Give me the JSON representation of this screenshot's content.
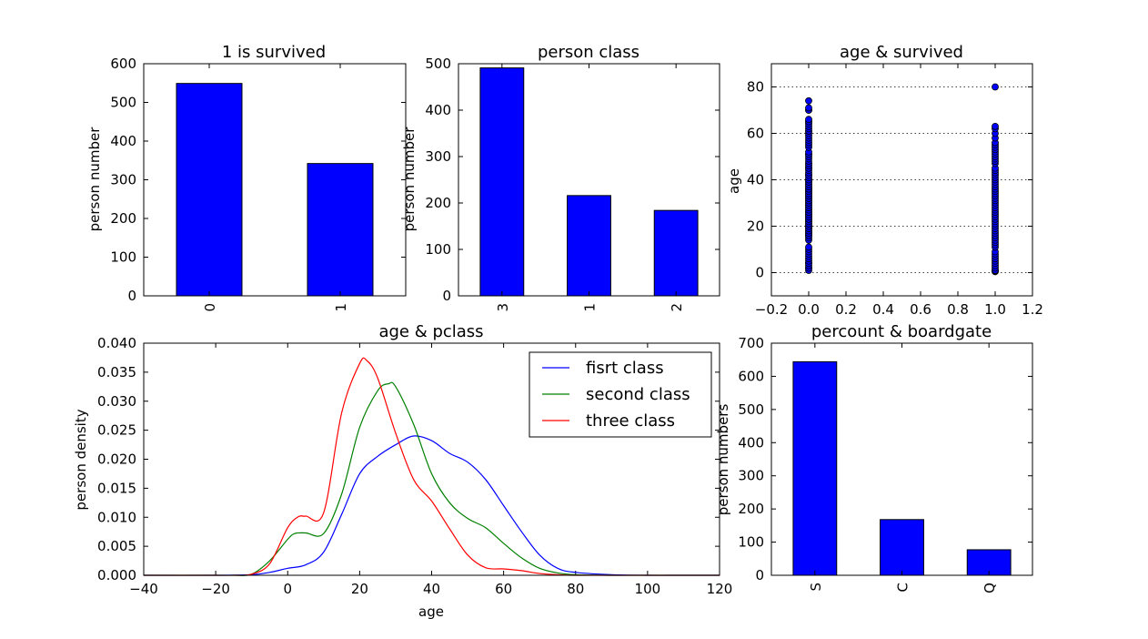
{
  "chart_data": [
    {
      "id": "survived",
      "type": "bar",
      "title": "1 is survived",
      "xlabel": "",
      "ylabel": "person number",
      "categories": [
        "0",
        "1"
      ],
      "values": [
        549,
        342
      ],
      "ylim": [
        0,
        600
      ],
      "yticks": [
        "0",
        "100",
        "200",
        "300",
        "400",
        "500",
        "600"
      ],
      "bar_color": "#0000ff",
      "grid": false
    },
    {
      "id": "pclass",
      "type": "bar",
      "title": "person class",
      "xlabel": "",
      "ylabel": "person number",
      "categories": [
        "3",
        "1",
        "2"
      ],
      "values": [
        491,
        216,
        184
      ],
      "ylim": [
        0,
        500
      ],
      "yticks": [
        "0",
        "100",
        "200",
        "300",
        "400",
        "500"
      ],
      "bar_color": "#0000ff",
      "grid": false
    },
    {
      "id": "age_survived",
      "type": "scatter",
      "title": "age & survived",
      "xlabel": "",
      "ylabel": "age",
      "xlim": [
        -0.2,
        1.2
      ],
      "ylim": [
        -10,
        90
      ],
      "xticks": [
        "−0.2",
        "0.0",
        "0.2",
        "0.4",
        "0.6",
        "0.8",
        "1.0",
        "1.2"
      ],
      "yticks": [
        "0",
        "20",
        "40",
        "60",
        "80"
      ],
      "grid": true,
      "grid_axis": "y",
      "marker_color": "#0000ff",
      "series": [
        {
          "x": 0,
          "y": [
            1,
            2,
            2,
            3,
            4,
            4,
            5,
            6,
            7,
            8,
            9,
            10,
            11,
            14,
            15,
            16,
            16,
            17,
            17,
            18,
            18,
            19,
            19,
            20,
            20,
            21,
            21,
            22,
            22,
            23,
            23,
            24,
            24,
            25,
            25,
            26,
            26,
            27,
            27,
            28,
            28,
            29,
            29,
            30,
            30,
            31,
            31,
            32,
            32,
            33,
            33,
            34,
            34,
            35,
            35,
            36,
            36,
            37,
            37,
            38,
            38,
            39,
            39,
            40,
            40,
            41,
            42,
            42,
            43,
            44,
            45,
            45,
            46,
            47,
            47,
            48,
            49,
            50,
            51,
            51,
            52,
            54,
            55,
            56,
            57,
            58,
            59,
            60,
            61,
            61,
            62,
            63,
            64,
            65,
            65,
            66,
            70,
            70,
            71,
            74
          ]
        },
        {
          "x": 1,
          "y": [
            0.42,
            0.67,
            0.75,
            0.83,
            0.92,
            1,
            2,
            3,
            4,
            5,
            6,
            7,
            8,
            9,
            11,
            12,
            13,
            14,
            15,
            16,
            17,
            18,
            19,
            20,
            21,
            22,
            23,
            24,
            25,
            26,
            27,
            28,
            29,
            30,
            31,
            32,
            33,
            34,
            35,
            36,
            37,
            38,
            39,
            40,
            41,
            42,
            43,
            44,
            45,
            47,
            48,
            49,
            50,
            51,
            52,
            53,
            54,
            55,
            56,
            58,
            60,
            62,
            63,
            80
          ]
        }
      ]
    },
    {
      "id": "age_pclass",
      "type": "line",
      "title": "age & pclass",
      "xlabel": "age",
      "ylabel": "person density",
      "xlim": [
        -40,
        120
      ],
      "ylim": [
        0,
        0.04
      ],
      "xticks": [
        "−40",
        "−20",
        "0",
        "20",
        "40",
        "60",
        "80",
        "100",
        "120"
      ],
      "yticks": [
        "0.000",
        "0.005",
        "0.010",
        "0.015",
        "0.020",
        "0.025",
        "0.030",
        "0.035",
        "0.040"
      ],
      "grid": false,
      "legend_position": "top-right",
      "series": [
        {
          "name": "fisrt class",
          "color": "#0000ff",
          "x": [
            -40,
            -20,
            -10,
            -5,
            0,
            5,
            10,
            15,
            20,
            25,
            30,
            35,
            40,
            45,
            50,
            55,
            60,
            65,
            70,
            75,
            80,
            90,
            100,
            110,
            120
          ],
          "y": [
            0,
            0,
            0.0001,
            0.0005,
            0.0012,
            0.0018,
            0.004,
            0.0105,
            0.0175,
            0.0205,
            0.0225,
            0.024,
            0.0232,
            0.021,
            0.0195,
            0.0165,
            0.012,
            0.0075,
            0.0035,
            0.0012,
            0.0005,
            0.0001,
            0,
            0,
            0
          ]
        },
        {
          "name": "second class",
          "color": "#008000",
          "x": [
            -40,
            -20,
            -15,
            -10,
            -5,
            0,
            2,
            5,
            10,
            15,
            20,
            25,
            28,
            30,
            35,
            40,
            45,
            50,
            55,
            60,
            65,
            70,
            75,
            80,
            90,
            100,
            120
          ],
          "y": [
            0,
            0,
            0,
            0.0002,
            0.0025,
            0.0062,
            0.0072,
            0.0073,
            0.0072,
            0.014,
            0.0255,
            0.0318,
            0.033,
            0.0325,
            0.026,
            0.0175,
            0.0125,
            0.0098,
            0.0082,
            0.0055,
            0.003,
            0.0012,
            0.0004,
            0.0001,
            0,
            0,
            0
          ]
        },
        {
          "name": "three class",
          "color": "#ff0000",
          "x": [
            -40,
            -20,
            -15,
            -10,
            -5,
            0,
            3,
            5,
            10,
            15,
            20,
            22,
            25,
            30,
            35,
            40,
            45,
            50,
            55,
            60,
            65,
            70,
            75,
            80,
            90,
            100,
            120
          ],
          "y": [
            0,
            0,
            0,
            0.0002,
            0.002,
            0.0082,
            0.0101,
            0.0102,
            0.0108,
            0.028,
            0.0365,
            0.037,
            0.034,
            0.0245,
            0.0165,
            0.0128,
            0.008,
            0.0035,
            0.0013,
            0.0011,
            0.0008,
            0.0003,
            0.0001,
            0,
            0,
            0,
            0
          ]
        }
      ]
    },
    {
      "id": "boardgate",
      "type": "bar",
      "title": "percount & boardgate",
      "xlabel": "",
      "ylabel": "person numbers",
      "categories": [
        "S",
        "C",
        "Q"
      ],
      "values": [
        644,
        168,
        77
      ],
      "ylim": [
        0,
        700
      ],
      "yticks": [
        "0",
        "100",
        "200",
        "300",
        "400",
        "500",
        "600",
        "700"
      ],
      "bar_color": "#0000ff",
      "grid": false
    }
  ]
}
